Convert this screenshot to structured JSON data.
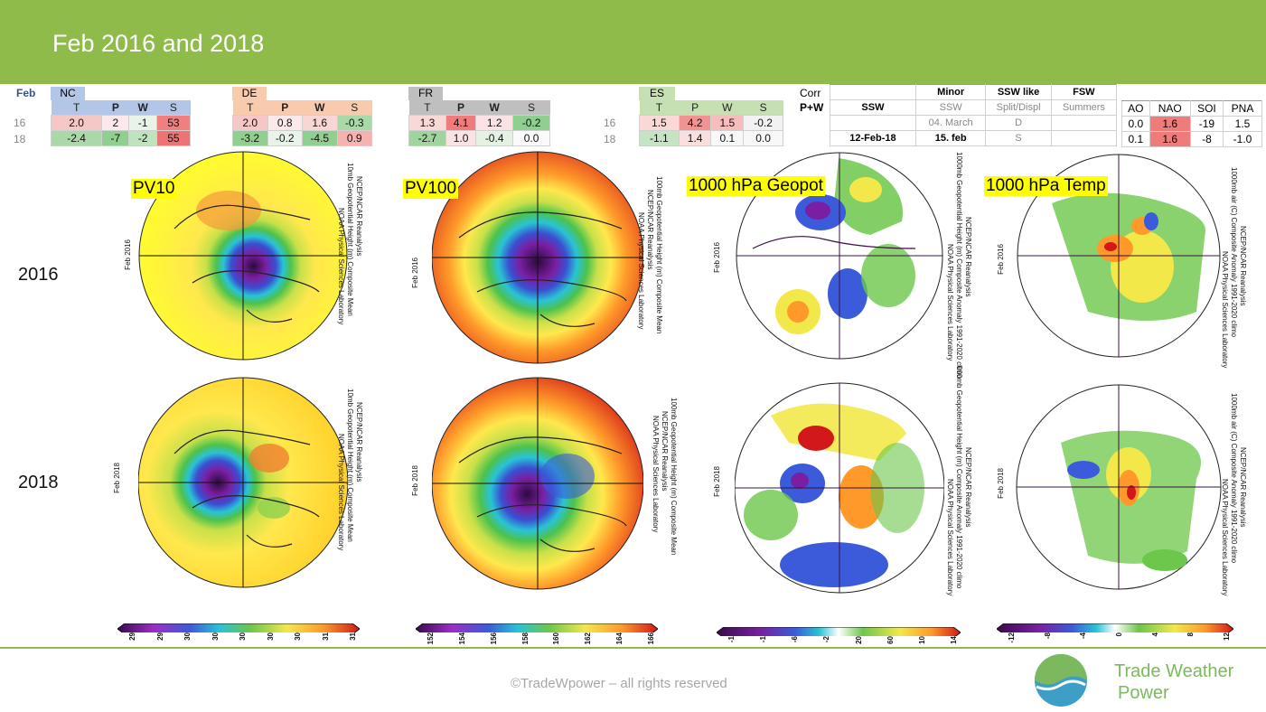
{
  "title": "Feb 2016 and 2018",
  "corner_label": "Feb",
  "regions": [
    {
      "name": "NC",
      "cols": [
        "T",
        "P",
        "W",
        "S"
      ],
      "rows": [
        [
          "2.0",
          "2",
          "-1",
          "53"
        ],
        [
          "-2.4",
          "-7",
          "-2",
          "55"
        ]
      ]
    },
    {
      "name": "DE",
      "cols": [
        "T",
        "P",
        "W",
        "S"
      ],
      "rows": [
        [
          "2.0",
          "0.8",
          "1.6",
          "-0.3"
        ],
        [
          "-3.2",
          "-0.2",
          "-4.5",
          "0.9"
        ]
      ]
    },
    {
      "name": "FR",
      "cols": [
        "T",
        "P",
        "W",
        "S"
      ],
      "rows": [
        [
          "1.3",
          "4.1",
          "1.2",
          "-0.2"
        ],
        [
          "-2.7",
          "1.0",
          "-0.4",
          "0.0"
        ]
      ]
    },
    {
      "name": "ES",
      "cols": [
        "T",
        "P",
        "W",
        "S"
      ],
      "rows": [
        [
          "1.5",
          "4.2",
          "1.5",
          "-0.2"
        ],
        [
          "-1.1",
          "1.4",
          "0.1",
          "0.0"
        ]
      ]
    }
  ],
  "years": [
    "16",
    "18"
  ],
  "corr_label": "Corr",
  "corr_sub": "P+W",
  "ssw_table": {
    "headers": [
      "SSW",
      "Minor",
      "SSW like",
      "FSW"
    ],
    "subheaders": [
      "SSW",
      "Split/Displ",
      "Summers"
    ],
    "rows": [
      [
        "",
        "04. March",
        "D",
        ""
      ],
      [
        "12-Feb-18",
        "15. feb",
        "S",
        ""
      ]
    ]
  },
  "indices": {
    "headers": [
      "AO",
      "NAO",
      "SOI",
      "PNA"
    ],
    "rows": [
      [
        "0.0",
        "1.6",
        "-19",
        "1.5"
      ],
      [
        "0.1",
        "1.6",
        "-8",
        "-1.0"
      ]
    ]
  },
  "row_years": [
    "2016",
    "2018"
  ],
  "map_labels": [
    "PV10",
    "PV100",
    "1000 hPa Geopot",
    "1000 hPa Temp"
  ],
  "map_captions": {
    "pv10": "10mb Geopotential Height (m) Composite Mean",
    "pv100": "100mb Geopotential Height (m) Composite Mean",
    "geo_2016": "1000mb Geopotential Height (m) Composite Anomaly 1991-2020 climo",
    "geo_2018": "000mb Geopotential Height (m) Composite Anomaly 1991-2020 climo",
    "temp": "1000mb air (C) Composite Anomaly 1991-2020 climo",
    "source": "NCEP/NCAR Reanalysis",
    "lab": "NOAA Physical Sciences Laboratory",
    "feb2016": "Feb 2016",
    "feb2018": "Feb 2018"
  },
  "colorbars": {
    "pv10": [
      "29",
      "29",
      "30",
      "30",
      "30",
      "30",
      "30",
      "31",
      "31"
    ],
    "pv100": [
      "152",
      "154",
      "156",
      "158",
      "160",
      "162",
      "164",
      "166"
    ],
    "geo": [
      "-1",
      "-1",
      "-6",
      "-2",
      "20",
      "60",
      "10",
      "14"
    ],
    "temp": [
      "-12",
      "-8",
      "-4",
      "0",
      "4",
      "8",
      "12"
    ]
  },
  "footer": "©TradeWpower – all rights reserved",
  "logo_line1": "Trade Weather",
  "logo_line2": "Power",
  "colors": {
    "header_green": "#8fbb4a",
    "red_cell": "#f4a0a0",
    "green_cell": "#a5d6a7"
  }
}
